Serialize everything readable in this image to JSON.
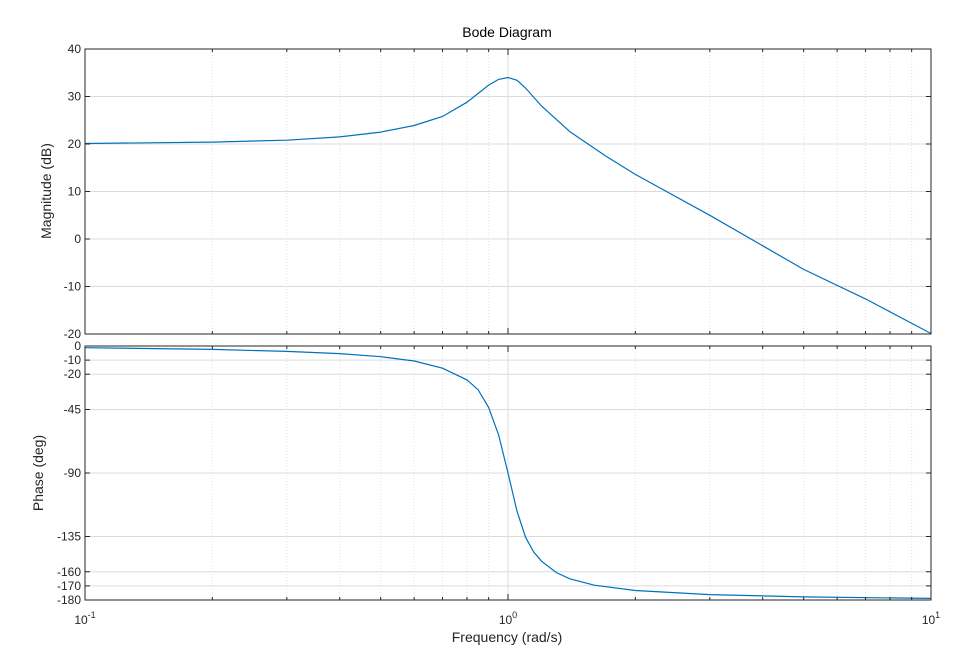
{
  "chart_data": [
    {
      "type": "line",
      "title": "Bode Diagram",
      "xlabel": "Frequency  (rad/s)",
      "ylabel": "Magnitude (dB)",
      "xscale": "log",
      "xlim": [
        0.1,
        10
      ],
      "ylim": [
        -20,
        40
      ],
      "yticks": [
        "-20",
        "-10",
        "0",
        "10",
        "20",
        "30",
        "40"
      ],
      "grid": true,
      "series": [
        {
          "color": "#0072BD",
          "x": [
            0.1,
            0.2,
            0.3,
            0.4,
            0.5,
            0.6,
            0.7,
            0.8,
            0.9,
            0.95,
            1.0,
            1.05,
            1.1,
            1.2,
            1.4,
            1.7,
            2,
            3,
            5,
            7,
            10
          ],
          "values": [
            20.1,
            20.4,
            20.8,
            21.5,
            22.5,
            23.9,
            25.8,
            28.8,
            32.4,
            33.6,
            34.0,
            33.4,
            31.8,
            28.0,
            22.6,
            17.5,
            13.6,
            5.0,
            -6.4,
            -12.6,
            -19.9
          ]
        }
      ]
    },
    {
      "type": "line",
      "title": "",
      "xlabel": "Frequency  (rad/s)",
      "ylabel": "Phase (deg)",
      "xscale": "log",
      "xlim": [
        0.1,
        10
      ],
      "ylim": [
        -180,
        0
      ],
      "yticks": [
        "-180",
        "-170",
        "-160",
        "-135",
        "-90",
        "-45",
        "-20",
        "-10",
        "0"
      ],
      "xticks": [
        {
          "base": "10",
          "exp": "-1"
        },
        {
          "base": "10",
          "exp": "0"
        },
        {
          "base": "10",
          "exp": "1"
        }
      ],
      "grid": true,
      "series": [
        {
          "color": "#0072BD",
          "x": [
            0.1,
            0.2,
            0.3,
            0.4,
            0.5,
            0.6,
            0.7,
            0.8,
            0.85,
            0.9,
            0.95,
            1.0,
            1.05,
            1.1,
            1.15,
            1.2,
            1.3,
            1.4,
            1.6,
            2,
            3,
            5,
            10
          ],
          "values": [
            -1.2,
            -2.4,
            -3.8,
            -5.4,
            -7.6,
            -10.6,
            -15.7,
            -24.0,
            -31.0,
            -43.5,
            -63.0,
            -90.0,
            -117.0,
            -135.5,
            -146.0,
            -152.5,
            -160.5,
            -165.0,
            -169.5,
            -173.3,
            -176.2,
            -177.8,
            -178.9
          ]
        }
      ]
    }
  ]
}
